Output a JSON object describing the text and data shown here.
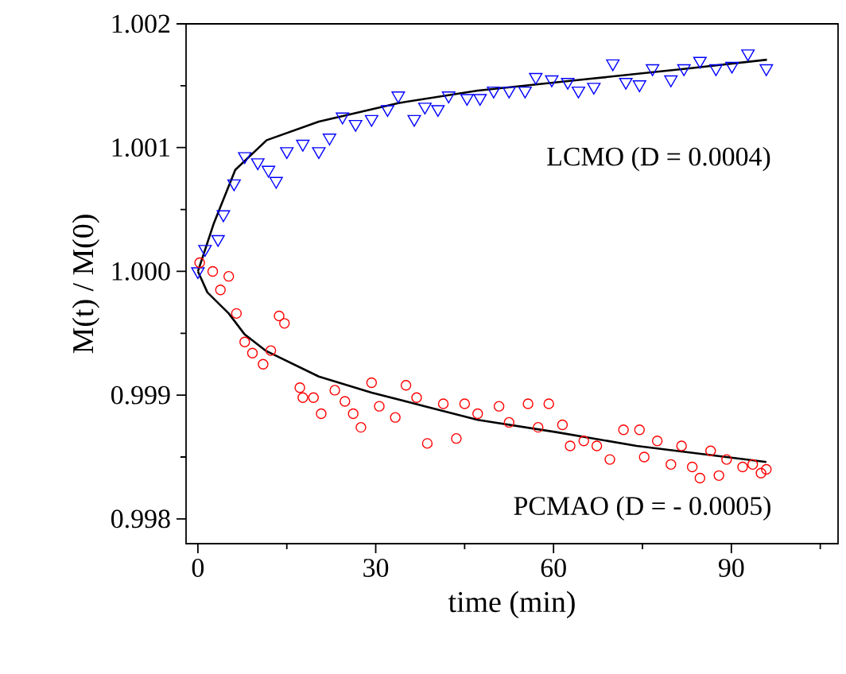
{
  "chart_data": {
    "type": "scatter",
    "xlabel": "time (min)",
    "ylabel": "M(t) / M(0)",
    "xlim": [
      -2,
      108
    ],
    "ylim": [
      0.9978,
      1.002
    ],
    "xticks": [
      0,
      {
        "value": 15,
        "label": null
      },
      30,
      {
        "value": 45,
        "label": null
      },
      60,
      {
        "value": 75,
        "label": null
      },
      90,
      {
        "value": 105,
        "label": null
      }
    ],
    "yticks": [
      0.998,
      {
        "value": 0.9985,
        "label": null
      },
      0.999,
      {
        "value": 0.9995,
        "label": null
      },
      {
        "value": 1.0,
        "label": "1.000"
      },
      {
        "value": 1.0005,
        "label": null
      },
      1.001,
      {
        "value": 1.0015,
        "label": null
      },
      1.002
    ],
    "series": [
      {
        "name": "LCMO (D = 0.0004)",
        "marker": "triangle",
        "color": "#0000ff",
        "x": [
          0,
          1.2,
          3.4,
          4.3,
          6.1,
          7.9,
          10.1,
          11.9,
          13.2,
          15.0,
          17.7,
          20.4,
          22.2,
          24.4,
          26.6,
          29.3,
          32.0,
          33.8,
          36.5,
          38.3,
          40.5,
          42.3,
          45.4,
          47.6,
          49.9,
          52.5,
          55.2,
          57.0,
          59.7,
          62.4,
          64.2,
          66.8,
          70.0,
          72.2,
          74.5,
          76.7,
          79.8,
          82.0,
          84.7,
          87.4,
          90.1,
          92.8,
          95.9
        ],
        "values": [
          1.0,
          1.00018,
          1.00026,
          1.00046,
          1.00071,
          1.00093,
          1.00088,
          1.00082,
          1.00073,
          1.00097,
          1.00103,
          1.00097,
          1.00108,
          1.00125,
          1.00119,
          1.00123,
          1.00131,
          1.00142,
          1.00123,
          1.00133,
          1.00131,
          1.00142,
          1.0014,
          1.0014,
          1.00146,
          1.00146,
          1.00146,
          1.00157,
          1.00155,
          1.00153,
          1.00146,
          1.00149,
          1.00168,
          1.00153,
          1.00151,
          1.00164,
          1.00155,
          1.00164,
          1.0017,
          1.00164,
          1.00166,
          1.00176,
          1.00164
        ]
      },
      {
        "type": "line",
        "color": "#000000",
        "line_style": "solid",
        "x": [
          0,
          2.7,
          6.3,
          11.6,
          20.4,
          33.8,
          47.2,
          65,
          82.9,
          96
        ],
        "values": [
          1.0,
          1.00039,
          1.00082,
          1.00106,
          1.00121,
          1.00136,
          1.00146,
          1.00155,
          1.00164,
          1.00171
        ]
      },
      {
        "name": "PCMAO (D = - 0.0005)",
        "marker": "circle",
        "color": "#ff0000",
        "x": [
          0.3,
          2.5,
          3.8,
          5.2,
          6.5,
          7.9,
          9.2,
          11.0,
          12.3,
          13.7,
          14.6,
          17.2,
          17.7,
          19.5,
          20.8,
          23.1,
          24.8,
          26.2,
          27.5,
          29.3,
          30.6,
          33.3,
          35.1,
          36.9,
          38.7,
          41.4,
          43.6,
          45.0,
          47.2,
          50.8,
          52.5,
          55.7,
          57.4,
          59.2,
          61.5,
          62.8,
          65.1,
          67.3,
          69.5,
          71.8,
          74.5,
          75.3,
          77.5,
          79.8,
          81.6,
          83.4,
          84.7,
          86.5,
          87.9,
          89.2,
          91.9,
          93.6,
          95.0,
          95.9
        ],
        "values": [
          1.00007,
          1.0,
          0.99985,
          0.99996,
          0.99966,
          0.99943,
          0.99934,
          0.99925,
          0.99936,
          0.99964,
          0.99958,
          0.99906,
          0.99898,
          0.99898,
          0.99885,
          0.99904,
          0.99895,
          0.99885,
          0.99874,
          0.9991,
          0.99891,
          0.99882,
          0.99908,
          0.99898,
          0.99861,
          0.99893,
          0.99865,
          0.99893,
          0.99885,
          0.99891,
          0.99878,
          0.99893,
          0.99874,
          0.99893,
          0.99876,
          0.99859,
          0.99863,
          0.99859,
          0.99848,
          0.99872,
          0.99872,
          0.9985,
          0.99863,
          0.99844,
          0.99859,
          0.99842,
          0.99833,
          0.99855,
          0.99835,
          0.99848,
          0.99842,
          0.99844,
          0.99837,
          0.9984
        ]
      },
      {
        "type": "line",
        "color": "#000000",
        "line_style": "solid",
        "x": [
          0,
          1.6,
          5.2,
          7.9,
          11.4,
          20.4,
          29.3,
          38.3,
          47.2,
          60.6,
          74,
          95.9
        ],
        "values": [
          1.0,
          0.99983,
          0.99966,
          0.99949,
          0.99936,
          0.99915,
          0.99902,
          0.99891,
          0.9988,
          0.9987,
          0.99859,
          0.99846
        ]
      }
    ]
  }
}
